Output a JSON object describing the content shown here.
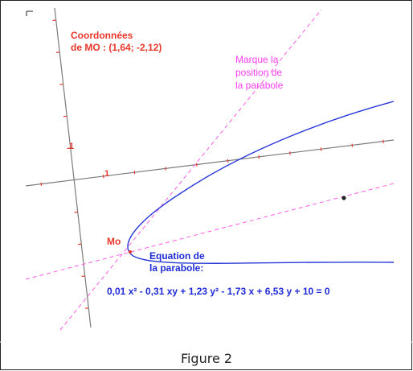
{
  "colors": {
    "axis": "#7a7a7a",
    "tick": "#e8362b",
    "curve": "#2838d8",
    "guide": "#ff5ae8",
    "label_red": "#e8362b",
    "label_blue": "#1f2bd6",
    "label_pink": "#ff3cf0",
    "frame": "#222222"
  },
  "labels": {
    "coord_line1": "Coordonnées",
    "coord_line2": "de MO :  (1,64; -2,12)",
    "marker_line1": "Marque la",
    "marker_line2": "position de",
    "marker_line3": "la parabole",
    "tick_y": "1",
    "tick_x": "1",
    "point_mo": "Mo",
    "eq_title_line1": "Equation de",
    "eq_title_line2": "la parabole:",
    "equation": "0,01 x² - 0,31 xy + 1,23 y² - 1,73 x + 6,53 y + 10 = 0",
    "caption": "Figure 2"
  }
}
